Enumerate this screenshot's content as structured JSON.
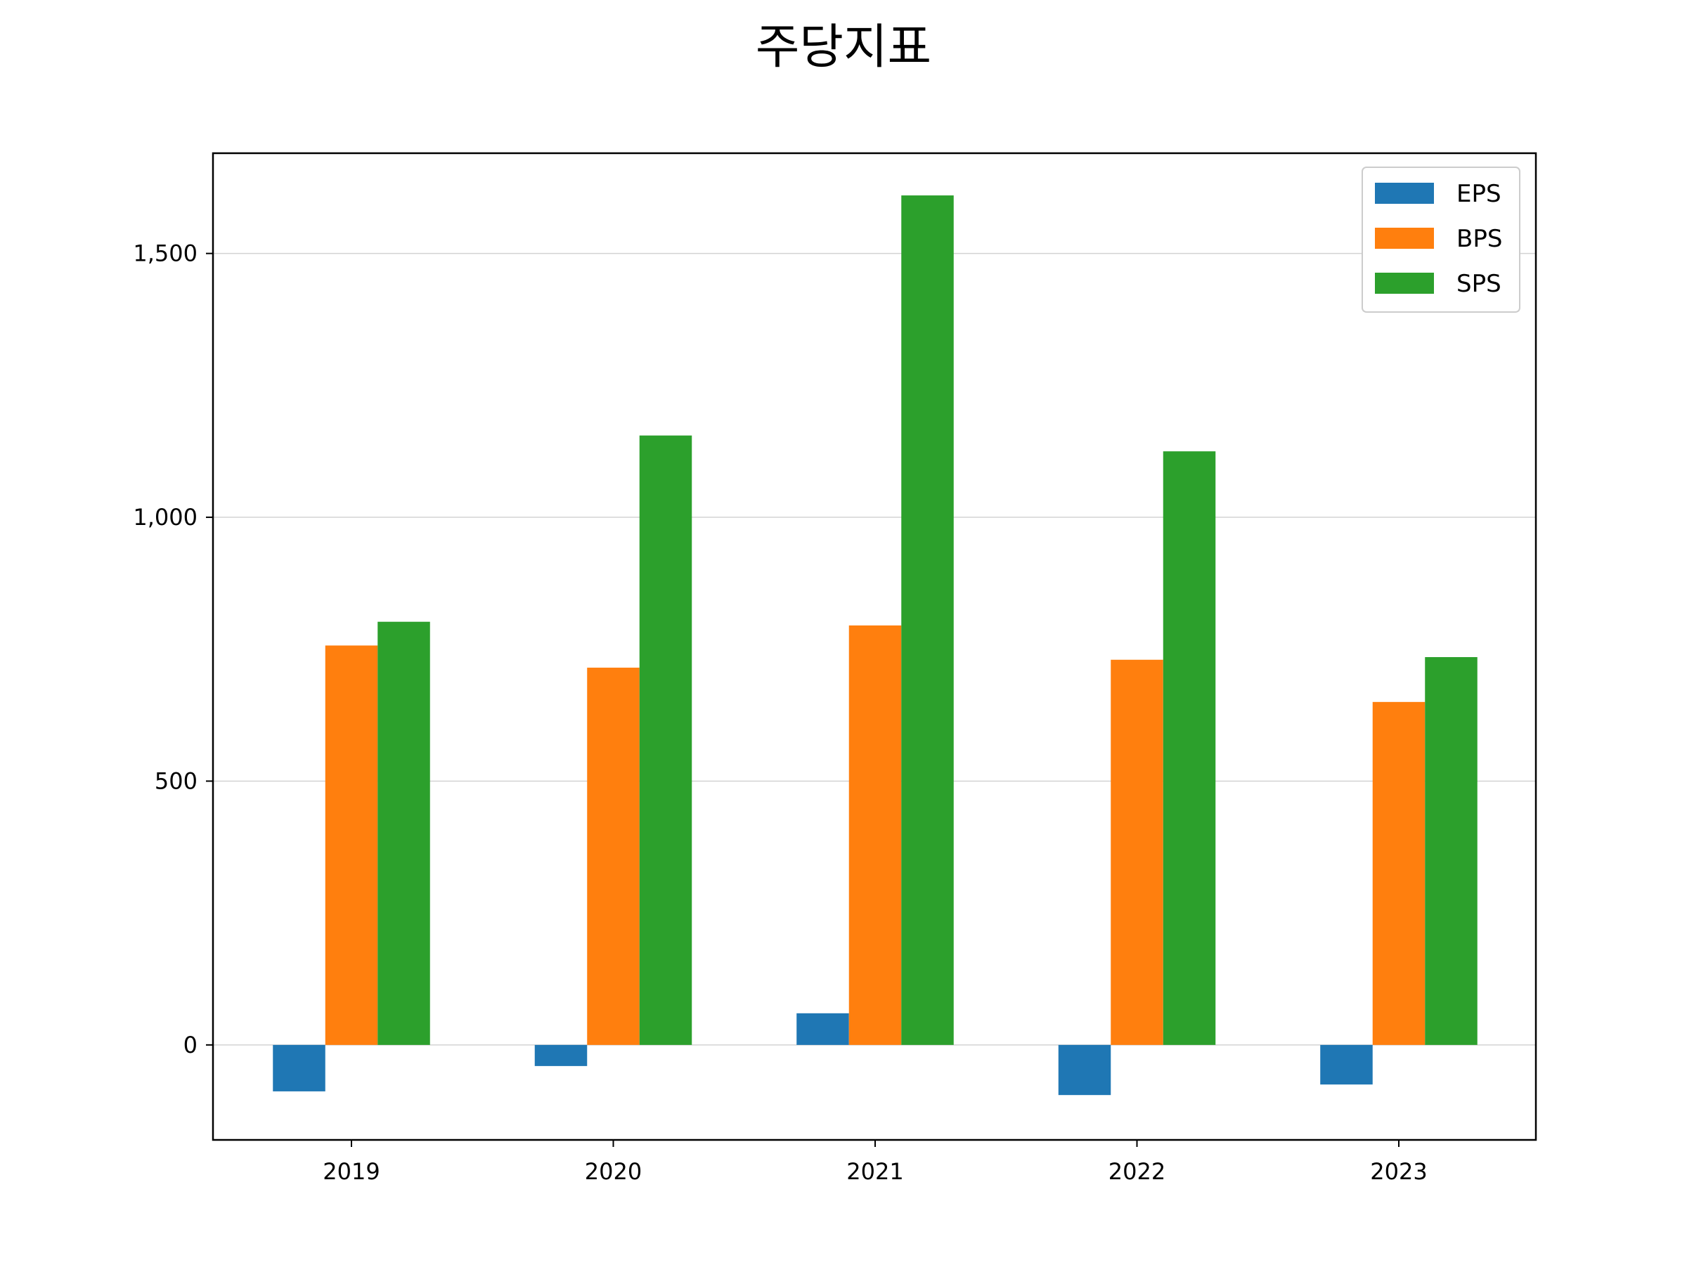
{
  "chart_data": {
    "type": "bar",
    "title": "주당지표",
    "xlabel": "",
    "ylabel": "",
    "categories": [
      "2019",
      "2020",
      "2021",
      "2022",
      "2023"
    ],
    "series": [
      {
        "name": "EPS",
        "color": "#1f77b4",
        "values": [
          -88,
          -40,
          60,
          -95,
          -75
        ]
      },
      {
        "name": "BPS",
        "color": "#ff7f0e",
        "values": [
          757,
          715,
          795,
          730,
          650
        ]
      },
      {
        "name": "SPS",
        "color": "#2ca02c",
        "values": [
          802,
          1155,
          1610,
          1125,
          735
        ]
      }
    ],
    "ylim": [
      -180,
      1690
    ],
    "yticks": [
      0,
      500,
      1000,
      1500
    ],
    "ytick_labels": [
      "0",
      "500",
      "1,000",
      "1,500"
    ],
    "grid": "y",
    "legend_position": "top-right"
  }
}
